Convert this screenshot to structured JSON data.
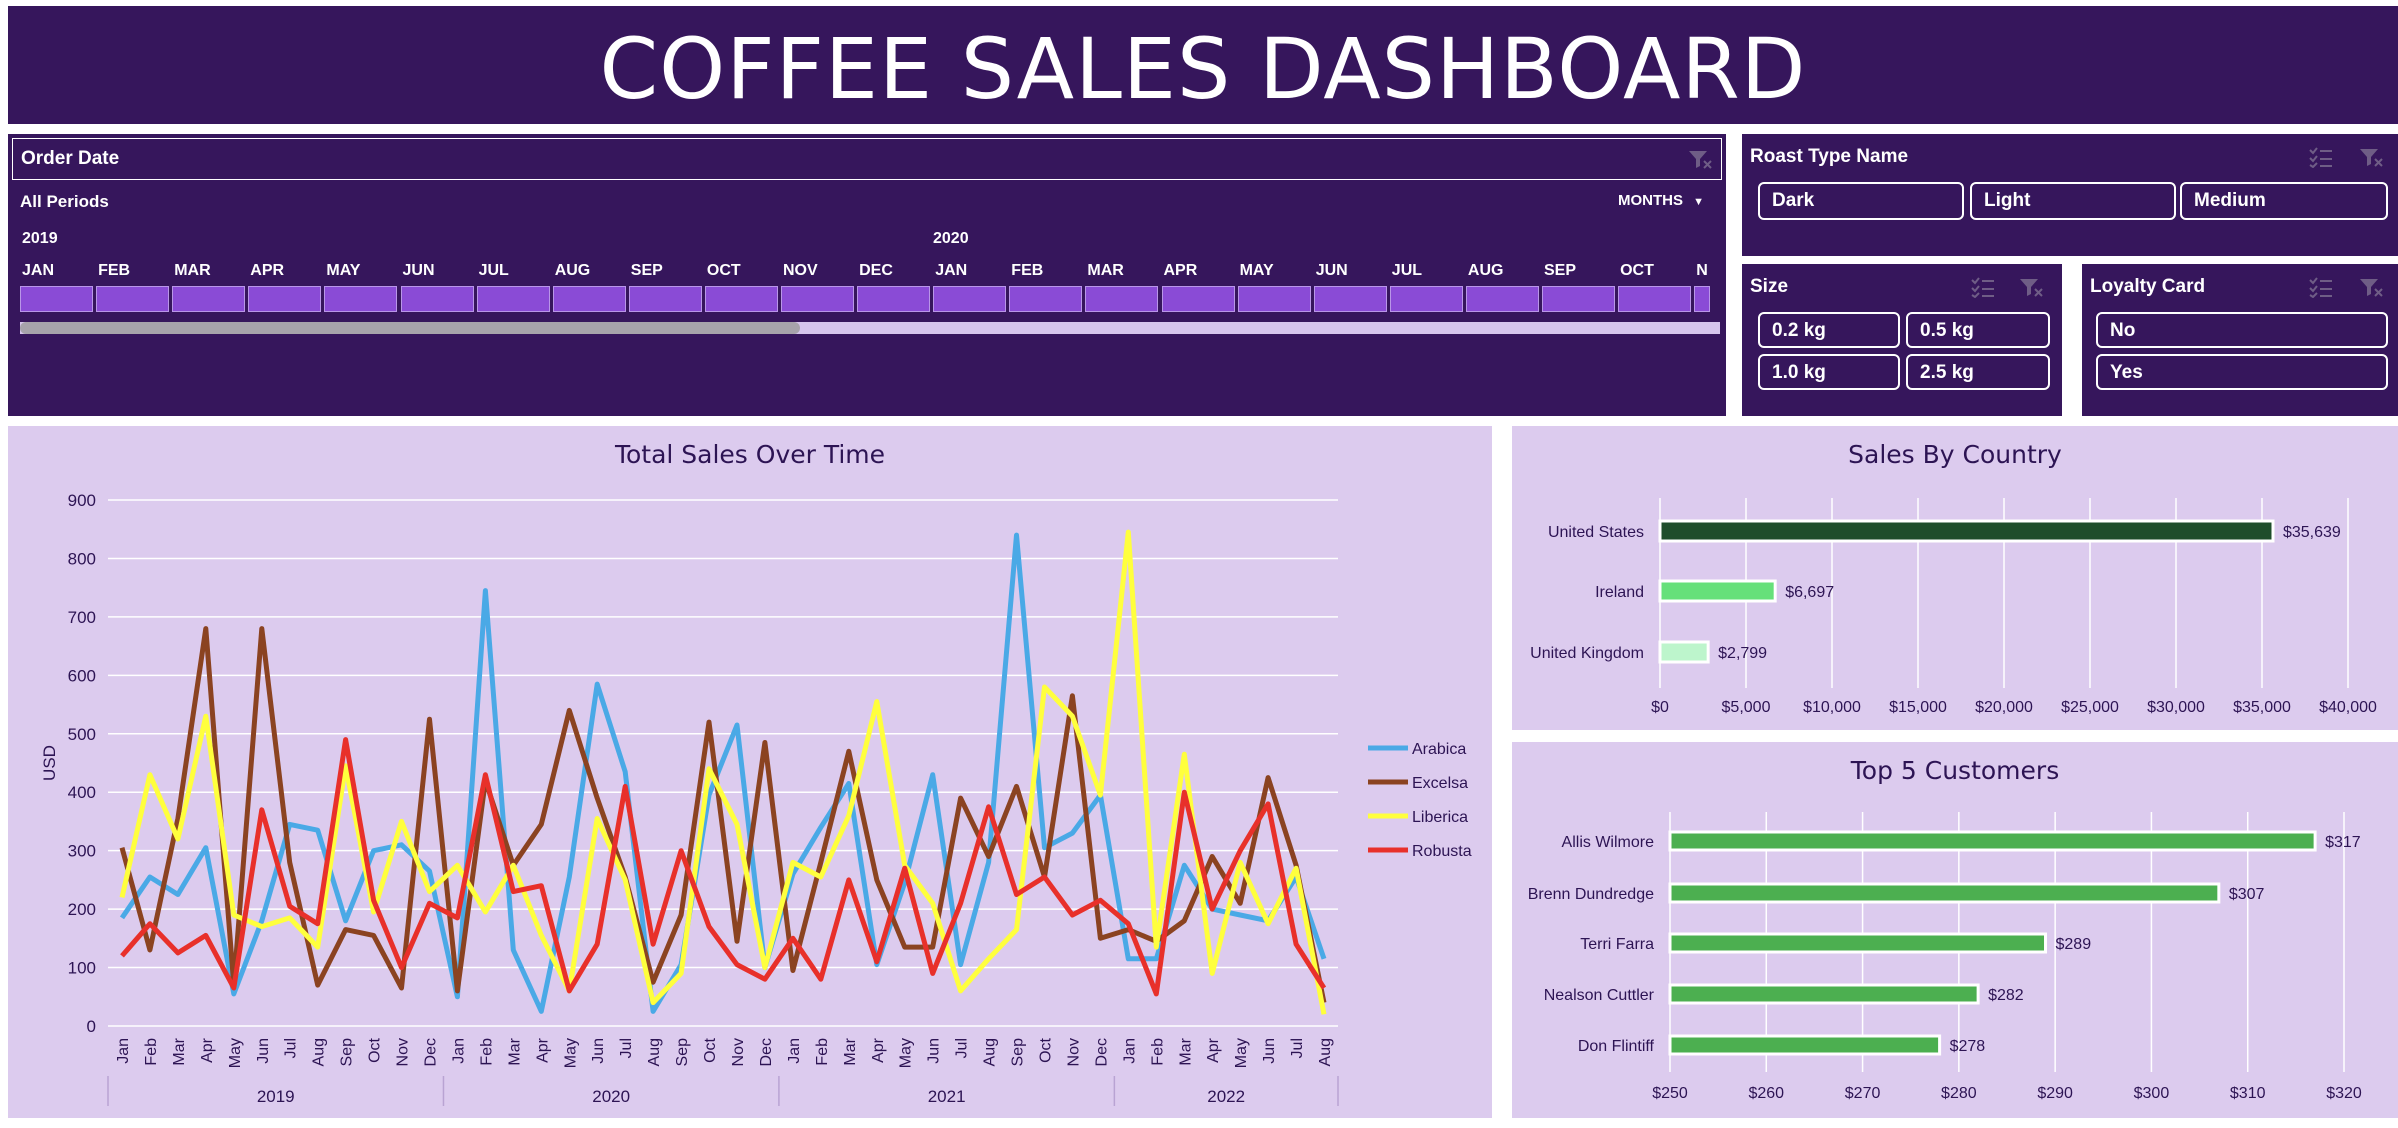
{
  "header": {
    "title": "COFFEE SALES DASHBOARD"
  },
  "timeline": {
    "title": "Order Date",
    "period_label": "All Periods",
    "unit_label": "MONTHS",
    "years": [
      "2019",
      "2020"
    ],
    "months": [
      "JAN",
      "FEB",
      "MAR",
      "APR",
      "MAY",
      "JUN",
      "JUL",
      "AUG",
      "SEP",
      "OCT",
      "NOV",
      "DEC",
      "JAN",
      "FEB",
      "MAR",
      "APR",
      "MAY",
      "JUN",
      "JUL",
      "AUG",
      "SEP",
      "OCT",
      "N"
    ]
  },
  "roast_slicer": {
    "title": "Roast Type Name",
    "items": [
      "Dark",
      "Light",
      "Medium"
    ]
  },
  "size_slicer": {
    "title": "Size",
    "items": [
      "0.2 kg",
      "0.5 kg",
      "1.0 kg",
      "2.5 kg"
    ]
  },
  "loyalty_slicer": {
    "title": "Loyalty Card",
    "items": [
      "No",
      "Yes"
    ]
  },
  "icons": {
    "filter": "clear-filter-icon",
    "multiselect": "multi-select-icon"
  },
  "colors": {
    "header_bg": "#36165c",
    "panel_bg": "#dccbee",
    "arabica": "#4aa9e6",
    "excelsa": "#8b4321",
    "liberica": "#ffff3d",
    "robusta": "#e8302a",
    "us_bar": "#1e4d2b",
    "ireland_bar": "#66e07a",
    "uk_bar": "#bdf5cc",
    "customer_bar": "#4caf50"
  },
  "chart_data": [
    {
      "type": "line",
      "title": "Total Sales Over Time",
      "ylabel": "USD",
      "ylim": [
        0,
        900
      ],
      "yticks": [
        0,
        100,
        200,
        300,
        400,
        500,
        600,
        700,
        800,
        900
      ],
      "grid": true,
      "legend": "right",
      "month_labels": [
        "Jan",
        "Feb",
        "Mar",
        "Apr",
        "May",
        "Jun",
        "Jul",
        "Aug",
        "Sep",
        "Oct",
        "Nov",
        "Dec",
        "Jan",
        "Feb",
        "Mar",
        "Apr",
        "May",
        "Jun",
        "Jul",
        "Aug",
        "Sep",
        "Oct",
        "Nov",
        "Dec",
        "Jan",
        "Feb",
        "Mar",
        "Apr",
        "May",
        "Jun",
        "Jul",
        "Aug",
        "Sep",
        "Oct",
        "Nov",
        "Dec",
        "Jan",
        "Feb",
        "Mar",
        "Apr",
        "May",
        "Jun",
        "Jul",
        "Aug"
      ],
      "year_labels": [
        "2019",
        "2020",
        "2021",
        "2022"
      ],
      "series": [
        {
          "name": "Arabica",
          "color": "#4aa9e6",
          "values": [
            185,
            255,
            225,
            305,
            55,
            180,
            345,
            335,
            180,
            300,
            310,
            265,
            50,
            745,
            130,
            25,
            255,
            585,
            435,
            25,
            105,
            395,
            515,
            100,
            260,
            340,
            415,
            105,
            245,
            430,
            105,
            280,
            840,
            305,
            330,
            395,
            115,
            115,
            275,
            200,
            190,
            180,
            255,
            115
          ]
        },
        {
          "name": "Excelsa",
          "color": "#8b4321",
          "values": [
            305,
            130,
            355,
            680,
            70,
            680,
            280,
            70,
            165,
            155,
            65,
            525,
            60,
            420,
            275,
            345,
            540,
            390,
            255,
            75,
            190,
            520,
            145,
            485,
            95,
            280,
            470,
            250,
            135,
            135,
            390,
            290,
            410,
            255,
            565,
            150,
            165,
            145,
            180,
            290,
            210,
            425,
            275,
            40
          ]
        },
        {
          "name": "Liberica",
          "color": "#ffff3d",
          "values": [
            220,
            430,
            320,
            530,
            190,
            170,
            185,
            135,
            445,
            195,
            350,
            230,
            275,
            195,
            275,
            155,
            60,
            355,
            250,
            40,
            90,
            440,
            345,
            100,
            280,
            255,
            360,
            555,
            275,
            210,
            60,
            115,
            165,
            580,
            530,
            395,
            845,
            135,
            465,
            90,
            280,
            175,
            270,
            20
          ]
        },
        {
          "name": "Robusta",
          "color": "#e8302a",
          "values": [
            120,
            175,
            125,
            155,
            65,
            370,
            205,
            175,
            490,
            215,
            100,
            210,
            185,
            430,
            230,
            240,
            60,
            140,
            410,
            140,
            300,
            170,
            105,
            80,
            150,
            80,
            250,
            110,
            270,
            90,
            210,
            375,
            225,
            255,
            190,
            215,
            175,
            55,
            400,
            200,
            300,
            380,
            140,
            65
          ]
        }
      ]
    },
    {
      "type": "bar",
      "orientation": "horizontal",
      "title": "Sales By Country",
      "categories": [
        "United States",
        "Ireland",
        "United Kingdom"
      ],
      "values": [
        35639,
        6697,
        2799
      ],
      "data_labels": [
        "$35,639",
        "$6,697",
        "$2,799"
      ],
      "xlim": [
        0,
        40000
      ],
      "xticks": [
        "$0",
        "$5,000",
        "$10,000",
        "$15,000",
        "$20,000",
        "$25,000",
        "$30,000",
        "$35,000",
        "$40,000"
      ],
      "grid": true
    },
    {
      "type": "bar",
      "orientation": "horizontal",
      "title": "Top 5 Customers",
      "categories": [
        "Allis Wilmore",
        "Brenn Dundredge",
        "Terri Farra",
        "Nealson Cuttler",
        "Don Flintiff"
      ],
      "values": [
        317,
        307,
        289,
        282,
        278
      ],
      "data_labels": [
        "$317",
        "$307",
        "$289",
        "$282",
        "$278"
      ],
      "xlim": [
        250,
        320
      ],
      "xticks": [
        "$250",
        "$260",
        "$270",
        "$280",
        "$290",
        "$300",
        "$310",
        "$320"
      ],
      "grid": true
    }
  ]
}
